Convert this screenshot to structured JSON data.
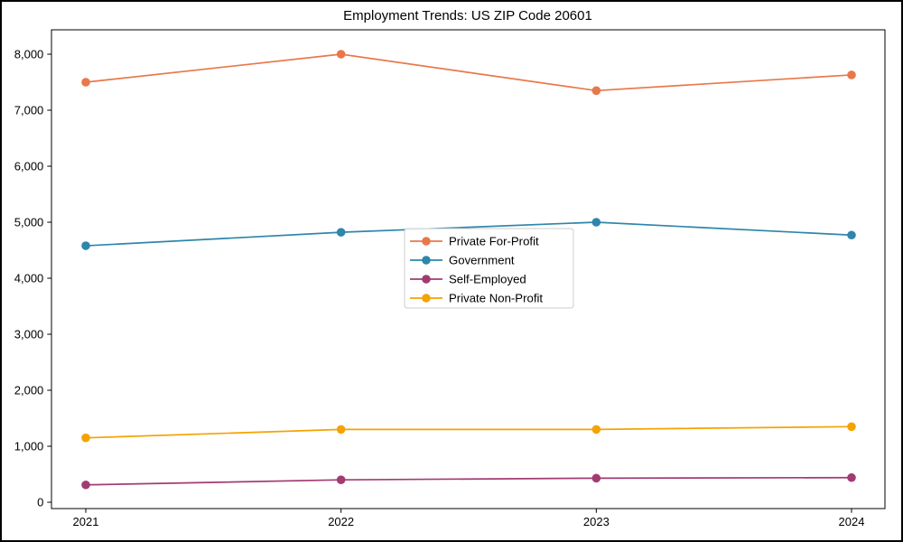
{
  "figure": {
    "background": "#ffffff",
    "border_color": "#000000"
  },
  "chart_data": {
    "type": "line",
    "title": "Employment Trends: US ZIP Code 20601",
    "x_categories": [
      "2021",
      "2022",
      "2023",
      "2024"
    ],
    "series": [
      {
        "name": "Private For-Profit",
        "color": "#E8784A",
        "values": [
          7500,
          8000,
          7350,
          7630
        ]
      },
      {
        "name": "Government",
        "color": "#2E86AB",
        "values": [
          4580,
          4820,
          5000,
          4770
        ]
      },
      {
        "name": "Self-Employed",
        "color": "#A23B72",
        "values": [
          310,
          400,
          430,
          440
        ]
      },
      {
        "name": "Private Non-Profit",
        "color": "#F4A303",
        "values": [
          1150,
          1300,
          1300,
          1350
        ]
      }
    ],
    "xlabel": "",
    "ylabel": "",
    "ylim": [
      0,
      8400
    ],
    "yticks": [
      0,
      1000,
      2000,
      3000,
      4000,
      5000,
      6000,
      7000,
      8000
    ],
    "ytick_labels": [
      "0",
      "1,000",
      "2,000",
      "3,000",
      "4,000",
      "5,000",
      "6,000",
      "7,000",
      "8,000"
    ],
    "grid": false,
    "marker": "circle",
    "legend": {
      "position": "center-inside",
      "entries": [
        "Private For-Profit",
        "Government",
        "Self-Employed",
        "Private Non-Profit"
      ]
    }
  }
}
